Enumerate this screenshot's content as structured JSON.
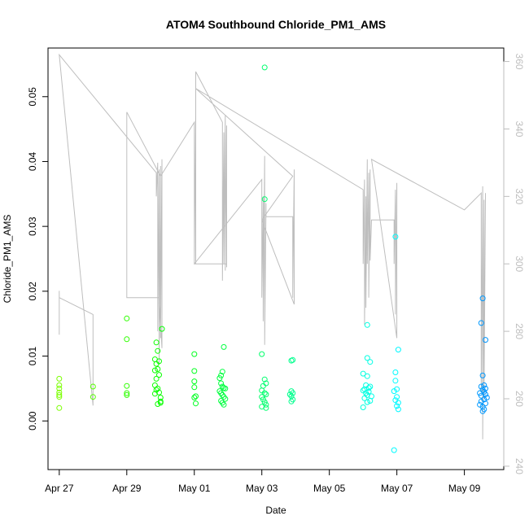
{
  "chart_data": {
    "type": "scatter",
    "title": "ATOM4 Southbound Chloride_PM1_AMS",
    "xlabel": "Date",
    "ylabel": "Chloride_PM1_AMS",
    "x_ticks": [
      "Apr 27",
      "Apr 29",
      "May 01",
      "May 03",
      "May 05",
      "May 07",
      "May 09"
    ],
    "y_ticks": [
      "0.00",
      "0.01",
      "0.02",
      "0.03",
      "0.04",
      "0.05"
    ],
    "y2_ticks": [
      "240",
      "260",
      "280",
      "300",
      "320",
      "340",
      "360"
    ],
    "xlim": [
      "2016-04-26 16:00",
      "2016-05-10 04:00"
    ],
    "ylim": [
      -0.0075,
      0.0575
    ],
    "y2lim": [
      239,
      364
    ],
    "grid": false,
    "colors": {
      "line": "#bebebe",
      "axis": "#000000",
      "right_axis": "#bebebe"
    },
    "series": [
      {
        "values": [
          [
            "2016-04-27 00:00",
            0.0065
          ],
          [
            "2016-04-27 00:00",
            0.0055
          ],
          [
            "2016-04-27 00:00",
            0.005
          ],
          [
            "2016-04-27 00:00",
            0.0044
          ],
          [
            "2016-04-27 00:00",
            0.004
          ],
          [
            "2016-04-27 00:00",
            0.0037
          ],
          [
            "2016-04-27 00:00",
            0.002
          ],
          [
            "2016-04-28 00:00",
            0.0053
          ],
          [
            "2016-04-28 00:00",
            0.0037
          ],
          [
            "2016-04-29 00:00",
            0.0158
          ],
          [
            "2016-04-29 00:00",
            0.0126
          ],
          [
            "2016-04-29 00:00",
            0.0054
          ],
          [
            "2016-04-29 00:00",
            0.0043
          ],
          [
            "2016-04-29 00:00",
            0.004
          ],
          [
            "2016-04-29 21:00",
            0.0121
          ],
          [
            "2016-04-29 22:00",
            0.0108
          ],
          [
            "2016-04-29 20:00",
            0.0095
          ],
          [
            "2016-04-29 23:00",
            0.0092
          ],
          [
            "2016-04-29 21:00",
            0.0088
          ],
          [
            "2016-04-29 22:00",
            0.008
          ],
          [
            "2016-04-29 20:00",
            0.0078
          ],
          [
            "2016-04-29 23:00",
            0.0071
          ],
          [
            "2016-04-29 21:00",
            0.0065
          ],
          [
            "2016-04-29 20:00",
            0.0055
          ],
          [
            "2016-04-29 22:00",
            0.005
          ],
          [
            "2016-04-29 21:00",
            0.0048
          ],
          [
            "2016-04-29 23:00",
            0.0044
          ],
          [
            "2016-04-29 20:00",
            0.0042
          ],
          [
            "2016-04-30 00:00",
            0.0036
          ],
          [
            "2016-04-30 00:00",
            0.003
          ],
          [
            "2016-04-30 00:00",
            0.0028
          ],
          [
            "2016-04-29 22:00",
            0.0026
          ],
          [
            "2016-04-30 01:00",
            0.0142
          ],
          [
            "2016-05-01 00:00",
            0.0103
          ],
          [
            "2016-05-01 00:00",
            0.0077
          ],
          [
            "2016-05-01 00:00",
            0.0061
          ],
          [
            "2016-05-01 00:00",
            0.0052
          ],
          [
            "2016-05-01 01:00",
            0.0038
          ],
          [
            "2016-05-01 00:00",
            0.0036
          ],
          [
            "2016-05-01 01:00",
            0.0027
          ],
          [
            "2016-05-01 21:00",
            0.0114
          ],
          [
            "2016-05-01 20:00",
            0.0076
          ],
          [
            "2016-05-01 19:00",
            0.007
          ],
          [
            "2016-05-01 18:00",
            0.0066
          ],
          [
            "2016-05-01 19:00",
            0.0058
          ],
          [
            "2016-05-01 20:00",
            0.0053
          ],
          [
            "2016-05-01 21:00",
            0.0051
          ],
          [
            "2016-05-01 22:00",
            0.005
          ],
          [
            "2016-05-01 18:00",
            0.0046
          ],
          [
            "2016-05-01 19:00",
            0.0043
          ],
          [
            "2016-05-01 20:00",
            0.004
          ],
          [
            "2016-05-01 21:00",
            0.0037
          ],
          [
            "2016-05-01 22:00",
            0.0034
          ],
          [
            "2016-05-01 19:00",
            0.0031
          ],
          [
            "2016-05-01 20:00",
            0.0028
          ],
          [
            "2016-05-01 21:00",
            0.0025
          ],
          [
            "2016-05-03 02:00",
            0.0545
          ],
          [
            "2016-05-03 02:00",
            0.0342
          ],
          [
            "2016-05-03 00:00",
            0.0103
          ],
          [
            "2016-05-03 02:00",
            0.0064
          ],
          [
            "2016-05-03 03:00",
            0.0058
          ],
          [
            "2016-05-03 01:00",
            0.0054
          ],
          [
            "2016-05-03 00:00",
            0.0047
          ],
          [
            "2016-05-03 02:00",
            0.0043
          ],
          [
            "2016-05-03 03:00",
            0.0041
          ],
          [
            "2016-05-03 00:00",
            0.0037
          ],
          [
            "2016-05-03 01:00",
            0.0033
          ],
          [
            "2016-05-03 02:00",
            0.0029
          ],
          [
            "2016-05-03 03:00",
            0.0025
          ],
          [
            "2016-05-03 00:00",
            0.0022
          ],
          [
            "2016-05-03 03:00",
            0.002
          ],
          [
            "2016-05-03 22:00",
            0.0094
          ],
          [
            "2016-05-03 21:00",
            0.0093
          ],
          [
            "2016-05-03 21:00",
            0.0046
          ],
          [
            "2016-05-03 22:00",
            0.0043
          ],
          [
            "2016-05-03 20:00",
            0.0041
          ],
          [
            "2016-05-03 21:00",
            0.0038
          ],
          [
            "2016-05-03 22:00",
            0.0033
          ],
          [
            "2016-05-03 21:00",
            0.003
          ],
          [
            "2016-05-06 03:00",
            0.0148
          ],
          [
            "2016-05-06 03:00",
            0.0097
          ],
          [
            "2016-05-06 05:00",
            0.0091
          ],
          [
            "2016-05-06 00:00",
            0.0073
          ],
          [
            "2016-05-06 03:00",
            0.0069
          ],
          [
            "2016-05-06 02:00",
            0.0055
          ],
          [
            "2016-05-06 05:00",
            0.0053
          ],
          [
            "2016-05-06 04:00",
            0.0051
          ],
          [
            "2016-05-06 01:00",
            0.0049
          ],
          [
            "2016-05-06 00:00",
            0.0047
          ],
          [
            "2016-05-06 04:00",
            0.0045
          ],
          [
            "2016-05-06 02:00",
            0.0043
          ],
          [
            "2016-05-06 03:00",
            0.004
          ],
          [
            "2016-05-06 06:00",
            0.0038
          ],
          [
            "2016-05-06 01:00",
            0.0035
          ],
          [
            "2016-05-06 05:00",
            0.0031
          ],
          [
            "2016-05-06 03:00",
            0.0029
          ],
          [
            "2016-05-06 00:00",
            0.0021
          ],
          [
            "2016-05-06 23:00",
            0.0284
          ],
          [
            "2016-05-07 01:00",
            0.011
          ],
          [
            "2016-05-06 23:00",
            0.0075
          ],
          [
            "2016-05-06 23:00",
            0.0062
          ],
          [
            "2016-05-07 00:00",
            0.0049
          ],
          [
            "2016-05-06 22:00",
            0.0046
          ],
          [
            "2016-05-07 00:00",
            0.0037
          ],
          [
            "2016-05-06 23:00",
            0.0032
          ],
          [
            "2016-05-07 01:00",
            0.0028
          ],
          [
            "2016-05-07 00:00",
            0.0023
          ],
          [
            "2016-05-07 01:00",
            0.0018
          ],
          [
            "2016-05-06 22:00",
            -0.0045
          ],
          [
            "2016-05-09 13:00",
            0.0189
          ],
          [
            "2016-05-09 12:00",
            0.0151
          ],
          [
            "2016-05-09 15:00",
            0.0125
          ],
          [
            "2016-05-09 13:00",
            0.007
          ],
          [
            "2016-05-09 14:00",
            0.0055
          ],
          [
            "2016-05-09 12:00",
            0.0053
          ],
          [
            "2016-05-09 15:00",
            0.005
          ],
          [
            "2016-05-09 13:00",
            0.0048
          ],
          [
            "2016-05-09 14:00",
            0.0045
          ],
          [
            "2016-05-09 11:00",
            0.0043
          ],
          [
            "2016-05-09 15:00",
            0.0041
          ],
          [
            "2016-05-09 12:00",
            0.0039
          ],
          [
            "2016-05-09 16:00",
            0.0036
          ],
          [
            "2016-05-09 14:00",
            0.0033
          ],
          [
            "2016-05-09 12:00",
            0.003
          ],
          [
            "2016-05-09 15:00",
            0.0027
          ],
          [
            "2016-05-09 11:00",
            0.0025
          ],
          [
            "2016-05-09 13:00",
            0.0022
          ],
          [
            "2016-05-09 14:00",
            0.0018
          ],
          [
            "2016-05-09 13:00",
            0.0015
          ]
        ]
      },
      {
        "axis": "right",
        "values": [
          [
            "2016-04-27 00:00",
            292
          ],
          [
            "2016-04-27 00:00",
            279
          ],
          [
            "2016-04-27 00:00",
            290
          ],
          [
            "2016-04-28 00:00",
            285
          ],
          [
            "2016-04-28 00:00",
            258
          ],
          [
            "2016-04-27 00:00",
            362
          ],
          [
            "2016-04-29 21:00",
            327
          ],
          [
            "2016-04-29 21:00",
            320
          ],
          [
            "2016-04-29 22:00",
            330
          ],
          [
            "2016-04-29 22:00",
            280
          ],
          [
            "2016-04-29 23:00",
            328
          ],
          [
            "2016-04-29 23:00",
            270
          ],
          [
            "2016-04-30 00:00",
            329
          ],
          [
            "2016-04-30 00:00",
            278
          ],
          [
            "2016-04-30 01:00",
            331
          ],
          [
            "2016-04-30 01:00",
            275
          ],
          [
            "2016-04-29 23:00",
            290
          ],
          [
            "2016-04-29 00:00",
            290
          ],
          [
            "2016-04-29 00:00",
            345
          ],
          [
            "2016-04-30 00:00",
            326
          ],
          [
            "2016-05-01 00:00",
            342
          ],
          [
            "2016-05-01 00:00",
            300
          ],
          [
            "2016-05-01 01:00",
            345
          ],
          [
            "2016-05-01 01:00",
            300
          ],
          [
            "2016-05-01 01:00",
            357
          ],
          [
            "2016-05-01 20:00",
            342
          ],
          [
            "2016-05-01 20:00",
            295
          ],
          [
            "2016-05-01 21:00",
            339
          ],
          [
            "2016-05-01 21:00",
            300
          ],
          [
            "2016-05-01 22:00",
            344
          ],
          [
            "2016-05-01 22:00",
            298
          ],
          [
            "2016-05-01 23:00",
            341
          ],
          [
            "2016-05-01 23:00",
            299
          ],
          [
            "2016-05-01 23:00",
            300
          ],
          [
            "2016-05-01 00:00",
            300
          ],
          [
            "2016-05-03 00:00",
            325
          ],
          [
            "2016-05-03 00:00",
            290
          ],
          [
            "2016-05-03 01:00",
            320
          ],
          [
            "2016-05-03 01:00",
            283
          ],
          [
            "2016-05-03 02:00",
            332
          ],
          [
            "2016-05-03 02:00",
            276
          ],
          [
            "2016-05-03 03:00",
            318
          ],
          [
            "2016-05-03 03:00",
            314
          ],
          [
            "2016-05-03 22:00",
            314
          ],
          [
            "2016-05-03 22:00",
            290
          ],
          [
            "2016-05-03 23:00",
            328
          ],
          [
            "2016-05-03 23:00",
            288
          ],
          [
            "2016-05-03 00:00",
            313
          ],
          [
            "2016-05-03 22:00",
            326
          ],
          [
            "2016-05-01 01:00",
            352
          ],
          [
            "2016-05-06 00:00",
            322
          ],
          [
            "2016-05-06 00:00",
            300
          ],
          [
            "2016-05-06 01:00",
            325
          ],
          [
            "2016-05-06 01:00",
            282
          ],
          [
            "2016-05-06 02:00",
            320
          ],
          [
            "2016-05-06 02:00",
            287
          ],
          [
            "2016-05-06 03:00",
            331
          ],
          [
            "2016-05-06 03:00",
            300
          ],
          [
            "2016-05-06 04:00",
            327
          ],
          [
            "2016-05-06 04:00",
            290
          ],
          [
            "2016-05-06 05:00",
            328
          ],
          [
            "2016-05-06 05:00",
            301
          ],
          [
            "2016-05-06 06:00",
            313
          ],
          [
            "2016-05-06 22:00",
            313
          ],
          [
            "2016-05-06 22:00",
            300
          ],
          [
            "2016-05-06 23:00",
            322
          ],
          [
            "2016-05-06 23:00",
            285
          ],
          [
            "2016-05-07 00:00",
            324
          ],
          [
            "2016-05-07 00:00",
            278
          ],
          [
            "2016-05-06 06:00",
            331
          ],
          [
            "2016-05-09 00:00",
            316
          ],
          [
            "2016-05-09 12:00",
            321
          ],
          [
            "2016-05-09 12:00",
            262
          ],
          [
            "2016-05-09 13:00",
            323
          ],
          [
            "2016-05-09 13:00",
            248
          ],
          [
            "2016-05-09 14:00",
            319
          ],
          [
            "2016-05-09 14:00",
            260
          ],
          [
            "2016-05-09 15:00",
            321
          ]
        ]
      }
    ]
  }
}
